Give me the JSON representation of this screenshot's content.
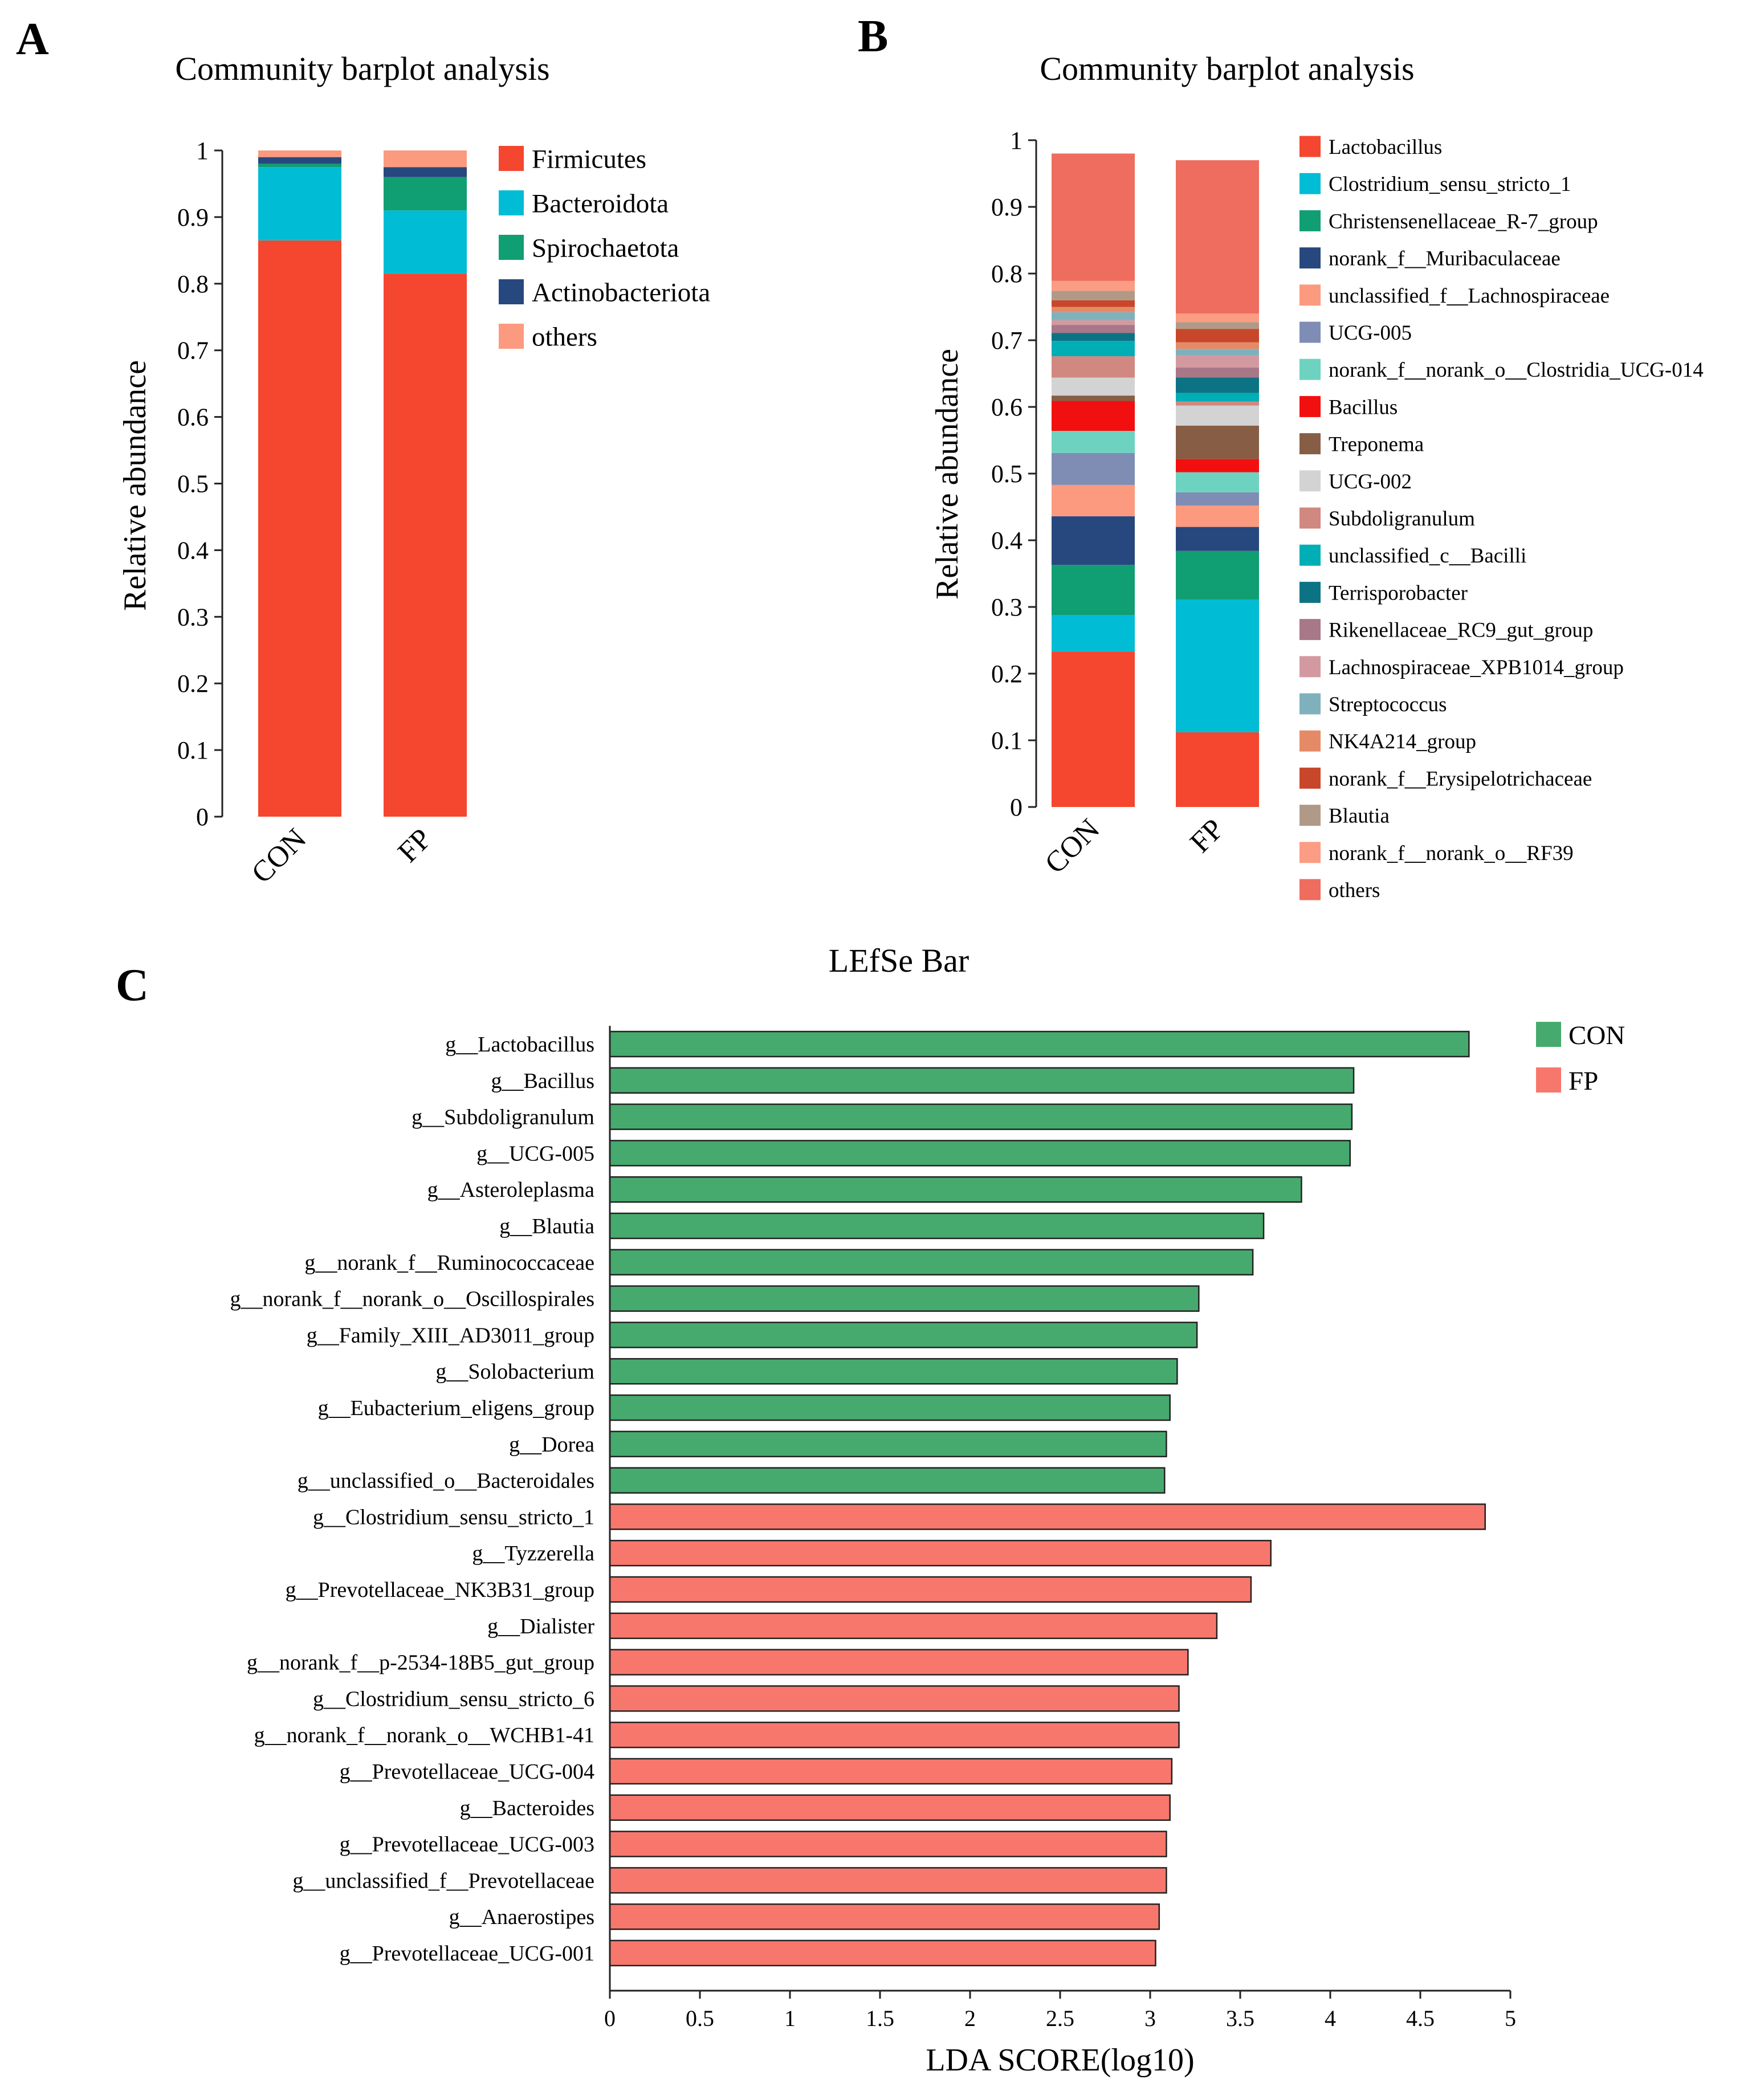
{
  "panels": {
    "a": "A",
    "b": "B",
    "c": "C"
  },
  "chart_data": [
    {
      "type": "bar",
      "stacked": true,
      "title": "Community barplot analysis",
      "xlabel": "",
      "ylabel": "Relative abundance",
      "ylim": [
        0,
        1
      ],
      "yticks": [
        "0",
        "0.1",
        "0.2",
        "0.3",
        "0.4",
        "0.5",
        "0.6",
        "0.7",
        "0.8",
        "0.9",
        "1"
      ],
      "categories": [
        "CON",
        "FP"
      ],
      "series": [
        {
          "name": "Firmicutes",
          "color": "#F5462F",
          "values": [
            0.865,
            0.815
          ]
        },
        {
          "name": "Bacteroidota",
          "color": "#00BCD4",
          "values": [
            0.11,
            0.095
          ]
        },
        {
          "name": "Spirochaetota",
          "color": "#109E73",
          "values": [
            0.005,
            0.05
          ]
        },
        {
          "name": "Actinobacteriota",
          "color": "#27487F",
          "values": [
            0.01,
            0.015
          ]
        },
        {
          "name": "others",
          "color": "#FB9A7E",
          "values": [
            0.01,
            0.025
          ]
        }
      ]
    },
    {
      "type": "bar",
      "stacked": true,
      "title": "Community barplot analysis",
      "xlabel": "",
      "ylabel": "Relative abundance",
      "ylim": [
        0,
        1
      ],
      "yticks": [
        "0",
        "0.1",
        "0.2",
        "0.3",
        "0.4",
        "0.5",
        "0.6",
        "0.7",
        "0.8",
        "0.9",
        "1"
      ],
      "categories": [
        "CON",
        "FP"
      ],
      "series": [
        {
          "name": "Lactobacillus",
          "color": "#F5462F",
          "values": [
            0.233,
            0.112
          ]
        },
        {
          "name": "Clostridium_sensu_stricto_1",
          "color": "#00BCD4",
          "values": [
            0.055,
            0.199
          ]
        },
        {
          "name": "Christensenellaceae_R-7_group",
          "color": "#109E73",
          "values": [
            0.075,
            0.073
          ]
        },
        {
          "name": "norank_f__Muribaculaceae",
          "color": "#27487F",
          "values": [
            0.073,
            0.036
          ]
        },
        {
          "name": "unclassified_f__Lachnospiraceae",
          "color": "#FB9A7E",
          "values": [
            0.047,
            0.032
          ]
        },
        {
          "name": "UCG-005",
          "color": "#7F8DB5",
          "values": [
            0.048,
            0.02
          ]
        },
        {
          "name": "norank_f__norank_o__Clostridia_UCG-014",
          "color": "#6DD3C0",
          "values": [
            0.033,
            0.03
          ]
        },
        {
          "name": "Bacillus",
          "color": "#F20F0F",
          "values": [
            0.045,
            0.02
          ]
        },
        {
          "name": "Treponema",
          "color": "#875E45",
          "values": [
            0.008,
            0.05
          ]
        },
        {
          "name": "UCG-002",
          "color": "#D3D3D3",
          "values": [
            0.027,
            0.03
          ]
        },
        {
          "name": "Subdoligranulum",
          "color": "#D08880",
          "values": [
            0.032,
            0.006
          ]
        },
        {
          "name": "unclassified_c__Bacilli",
          "color": "#00AEB5",
          "values": [
            0.023,
            0.013
          ]
        },
        {
          "name": "Terrisporobacter",
          "color": "#0C7384",
          "values": [
            0.012,
            0.023
          ]
        },
        {
          "name": "Rikenellaceae_RC9_gut_group",
          "color": "#A87788",
          "values": [
            0.012,
            0.015
          ]
        },
        {
          "name": "Lachnospiraceae_XPB1014_group",
          "color": "#D29AA0",
          "values": [
            0.007,
            0.018
          ]
        },
        {
          "name": "Streptococcus",
          "color": "#7FB1BC",
          "values": [
            0.012,
            0.01
          ]
        },
        {
          "name": "NK4A214_group",
          "color": "#E58A66",
          "values": [
            0.008,
            0.01
          ]
        },
        {
          "name": "norank_f__Erysipelotrichaceae",
          "color": "#C8472B",
          "values": [
            0.01,
            0.02
          ]
        },
        {
          "name": "Blautia",
          "color": "#B09A87",
          "values": [
            0.014,
            0.01
          ]
        },
        {
          "name": "norank_f__norank_o__RF39",
          "color": "#FB9C84",
          "values": [
            0.015,
            0.013
          ]
        },
        {
          "name": "others",
          "color": "#EE6D5E",
          "values": [
            0.191,
            0.23
          ]
        }
      ]
    },
    {
      "type": "bar",
      "orientation": "horizontal",
      "title": "LEfSe Bar",
      "xlabel": "LDA SCORE(log10)",
      "ylabel": "",
      "xlim": [
        0,
        5
      ],
      "xticks": [
        "0",
        "0.5",
        "1",
        "1.5",
        "2",
        "2.5",
        "3",
        "3.5",
        "4",
        "4.5",
        "5"
      ],
      "legend": [
        {
          "name": "CON",
          "color": "#46AA6E"
        },
        {
          "name": "FP",
          "color": "#F8776C"
        }
      ],
      "bars": [
        {
          "label": "g__Lactobacillus",
          "value": 4.77,
          "group": "CON"
        },
        {
          "label": "g__Bacillus",
          "value": 4.13,
          "group": "CON"
        },
        {
          "label": "g__Subdoligranulum",
          "value": 4.12,
          "group": "CON"
        },
        {
          "label": "g__UCG-005",
          "value": 4.11,
          "group": "CON"
        },
        {
          "label": "g__Asteroleplasma",
          "value": 3.84,
          "group": "CON"
        },
        {
          "label": "g__Blautia",
          "value": 3.63,
          "group": "CON"
        },
        {
          "label": "g__norank_f__Ruminococcaceae",
          "value": 3.57,
          "group": "CON"
        },
        {
          "label": "g__norank_f__norank_o__Oscillospirales",
          "value": 3.27,
          "group": "CON"
        },
        {
          "label": "g__Family_XIII_AD3011_group",
          "value": 3.26,
          "group": "CON"
        },
        {
          "label": "g__Solobacterium",
          "value": 3.15,
          "group": "CON"
        },
        {
          "label": "g__Eubacterium_eligens_group",
          "value": 3.11,
          "group": "CON"
        },
        {
          "label": "g__Dorea",
          "value": 3.09,
          "group": "CON"
        },
        {
          "label": "g__unclassified_o__Bacteroidales",
          "value": 3.08,
          "group": "CON"
        },
        {
          "label": "g__Clostridium_sensu_stricto_1",
          "value": 4.86,
          "group": "FP"
        },
        {
          "label": "g__Tyzzerella",
          "value": 3.67,
          "group": "FP"
        },
        {
          "label": "g__Prevotellaceae_NK3B31_group",
          "value": 3.56,
          "group": "FP"
        },
        {
          "label": "g__Dialister",
          "value": 3.37,
          "group": "FP"
        },
        {
          "label": "g__norank_f__p-2534-18B5_gut_group",
          "value": 3.21,
          "group": "FP"
        },
        {
          "label": "g__Clostridium_sensu_stricto_6",
          "value": 3.16,
          "group": "FP"
        },
        {
          "label": "g__norank_f__norank_o__WCHB1-41",
          "value": 3.16,
          "group": "FP"
        },
        {
          "label": "g__Prevotellaceae_UCG-004",
          "value": 3.12,
          "group": "FP"
        },
        {
          "label": "g__Bacteroides",
          "value": 3.11,
          "group": "FP"
        },
        {
          "label": "g__Prevotellaceae_UCG-003",
          "value": 3.09,
          "group": "FP"
        },
        {
          "label": "g__unclassified_f__Prevotellaceae",
          "value": 3.09,
          "group": "FP"
        },
        {
          "label": "g__Anaerostipes",
          "value": 3.05,
          "group": "FP"
        },
        {
          "label": "g__Prevotellaceae_UCG-001",
          "value": 3.03,
          "group": "FP"
        }
      ]
    }
  ]
}
